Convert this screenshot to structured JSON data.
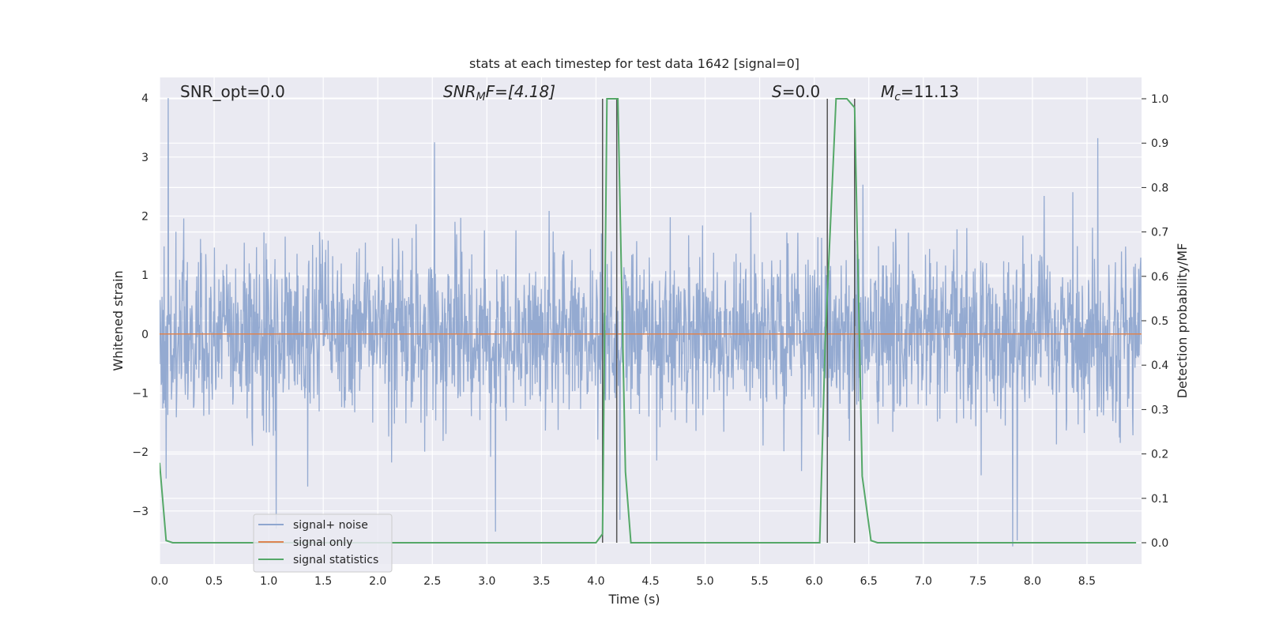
{
  "chart_data": {
    "type": "line",
    "title": "stats at each timestep for test data 1642 [signal=0]",
    "xlabel": "Time (s)",
    "ylabel_left": "Whitened strain",
    "ylabel_right": "Detection probability/MF",
    "xlim": [
      0.0,
      9.0
    ],
    "ylim_left": [
      -3.9,
      4.35
    ],
    "ylim_right": [
      0.0,
      1.0
    ],
    "x_ticks": [
      "0.0",
      "0.5",
      "1.0",
      "1.5",
      "2.0",
      "2.5",
      "3.0",
      "3.5",
      "4.0",
      "4.5",
      "5.0",
      "5.5",
      "6.0",
      "6.5",
      "7.0",
      "7.5",
      "8.0",
      "8.5"
    ],
    "y_ticks_left": [
      "4",
      "3",
      "2",
      "1",
      "0",
      "−1",
      "−2",
      "−3"
    ],
    "y_ticks_right": [
      "1.0",
      "0.9",
      "0.8",
      "0.7",
      "0.6",
      "0.5",
      "0.4",
      "0.3",
      "0.2",
      "0.1",
      "0.0"
    ],
    "grid": true,
    "legend_placement": "lower-left",
    "annotations": {
      "snr_opt": "SNR_opt=0.0",
      "snr_mf_label": "SNR",
      "snr_mf_sub": "M",
      "snr_mf_rest": "F=[4.18]",
      "s_label": "S",
      "s_rest": "=0.0",
      "mc_label": "M",
      "mc_sub": "c",
      "mc_rest": "=11.13"
    },
    "series": [
      {
        "name": "signal+ noise",
        "color": "#8fa6cf",
        "axis": "left",
        "description_amplitude_std": 0.72,
        "peak_points": [
          {
            "x": 0.08,
            "y": 4.0
          },
          {
            "x": 0.06,
            "y": -2.45
          },
          {
            "x": 1.07,
            "y": -3.3
          },
          {
            "x": 2.52,
            "y": 3.25
          },
          {
            "x": 3.08,
            "y": -3.35
          },
          {
            "x": 4.22,
            "y": -3.15
          },
          {
            "x": 7.82,
            "y": -3.6
          },
          {
            "x": 7.86,
            "y": -3.5
          },
          {
            "x": 8.6,
            "y": 3.32
          }
        ]
      },
      {
        "name": "signal only",
        "color": "#dd8452",
        "axis": "left",
        "x": [
          0.0,
          9.0
        ],
        "y": [
          0.0,
          0.0
        ]
      },
      {
        "name": "signal statistics",
        "color": "#55a868",
        "axis": "right",
        "x": [
          0.0,
          0.06,
          0.12,
          4.0,
          4.06,
          4.1,
          4.15,
          4.2,
          4.27,
          4.32,
          6.05,
          6.1,
          6.2,
          6.3,
          6.37,
          6.44,
          6.52,
          6.58,
          8.95
        ],
        "y": [
          0.18,
          0.005,
          0.0,
          0.0,
          0.02,
          1.0,
          1.0,
          1.0,
          0.16,
          0.0,
          0.0,
          0.45,
          1.0,
          1.0,
          0.98,
          0.15,
          0.005,
          0.0,
          0.0
        ]
      }
    ],
    "vertical_lines_x": [
      4.06,
      4.19,
      6.12,
      6.37
    ]
  }
}
